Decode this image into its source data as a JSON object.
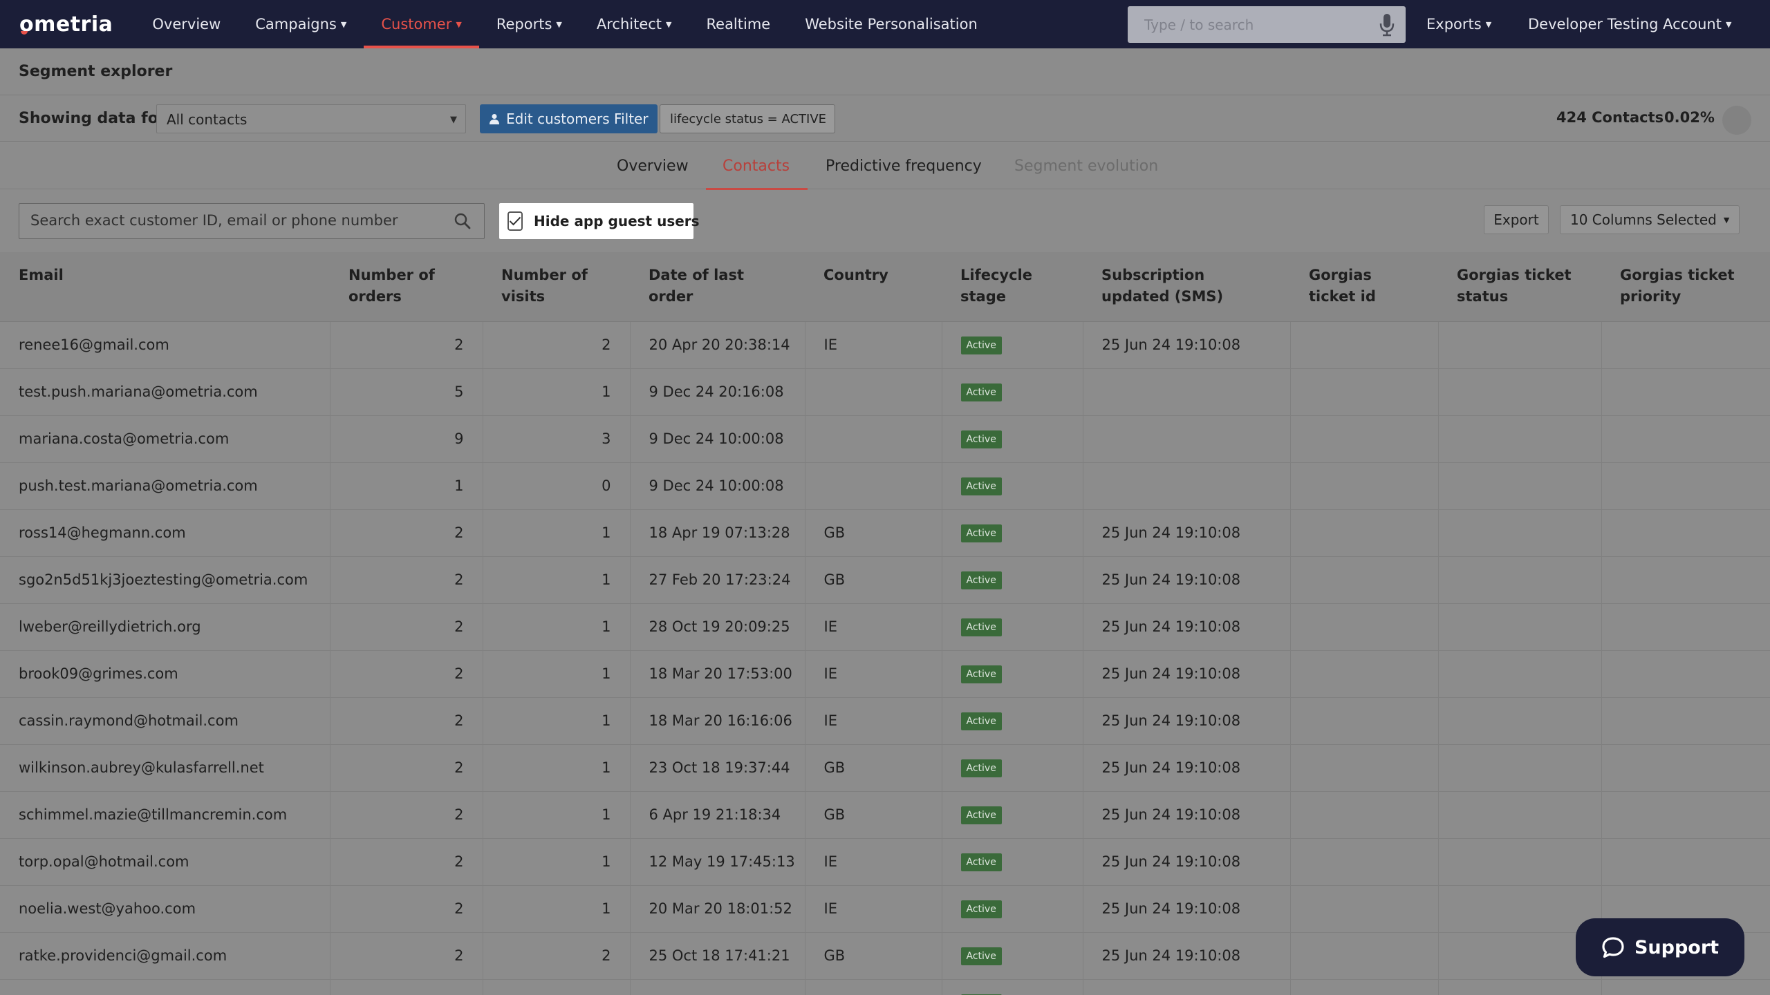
{
  "app": {
    "logo": "ometria"
  },
  "topnav": {
    "items": [
      {
        "label": "Overview",
        "dropdown": false,
        "active": false
      },
      {
        "label": "Campaigns",
        "dropdown": true,
        "active": false
      },
      {
        "label": "Customer",
        "dropdown": true,
        "active": true
      },
      {
        "label": "Reports",
        "dropdown": true,
        "active": false
      },
      {
        "label": "Architect",
        "dropdown": true,
        "active": false
      },
      {
        "label": "Realtime",
        "dropdown": false,
        "active": false
      },
      {
        "label": "Website Personalisation",
        "dropdown": false,
        "active": false
      }
    ],
    "search_placeholder": "Type / to search",
    "exports": "Exports",
    "account": "Developer Testing Account"
  },
  "page": {
    "title": "Segment explorer",
    "showing_label": "Showing data for:",
    "segment_selected": "All contacts",
    "edit_filter": "Edit customers Filter",
    "filter_chip": "lifecycle status = ACTIVE",
    "contacts_count": "424 Contacts",
    "contacts_percent": "0.02%"
  },
  "tabs": [
    {
      "label": "Overview",
      "state": "normal"
    },
    {
      "label": "Contacts",
      "state": "active"
    },
    {
      "label": "Predictive frequency",
      "state": "normal"
    },
    {
      "label": "Segment evolution",
      "state": "disabled"
    }
  ],
  "toolbar": {
    "search_placeholder": "Search exact customer ID, email or phone number",
    "hide_guest_label": "Hide app guest users",
    "hide_guest_checked": true,
    "export": "Export",
    "columns": "10 Columns Selected"
  },
  "table": {
    "columns": [
      "Email",
      "Number of orders",
      "Number of visits",
      "Date of last order",
      "Country",
      "Lifecycle stage",
      "Subscription updated (SMS)",
      "Gorgias ticket id",
      "Gorgias ticket status",
      "Gorgias ticket priority"
    ],
    "rows": [
      [
        "renee16@gmail.com",
        "2",
        "2",
        "20 Apr 20 20:38:14",
        "IE",
        "Active",
        "25 Jun 24 19:10:08",
        "",
        "",
        ""
      ],
      [
        "test.push.mariana@ometria.com",
        "5",
        "1",
        "9 Dec 24 20:16:08",
        "",
        "Active",
        "",
        "",
        "",
        ""
      ],
      [
        "mariana.costa@ometria.com",
        "9",
        "3",
        "9 Dec 24 10:00:08",
        "",
        "Active",
        "",
        "",
        "",
        ""
      ],
      [
        "push.test.mariana@ometria.com",
        "1",
        "0",
        "9 Dec 24 10:00:08",
        "",
        "Active",
        "",
        "",
        "",
        ""
      ],
      [
        "ross14@hegmann.com",
        "2",
        "1",
        "18 Apr 19 07:13:28",
        "GB",
        "Active",
        "25 Jun 24 19:10:08",
        "",
        "",
        ""
      ],
      [
        "sgo2n5d51kj3joeztesting@ometria.com",
        "2",
        "1",
        "27 Feb 20 17:23:24",
        "GB",
        "Active",
        "25 Jun 24 19:10:08",
        "",
        "",
        ""
      ],
      [
        "lweber@reillydietrich.org",
        "2",
        "1",
        "28 Oct 19 20:09:25",
        "IE",
        "Active",
        "25 Jun 24 19:10:08",
        "",
        "",
        ""
      ],
      [
        "brook09@grimes.com",
        "2",
        "1",
        "18 Mar 20 17:53:00",
        "IE",
        "Active",
        "25 Jun 24 19:10:08",
        "",
        "",
        ""
      ],
      [
        "cassin.raymond@hotmail.com",
        "2",
        "1",
        "18 Mar 20 16:16:06",
        "IE",
        "Active",
        "25 Jun 24 19:10:08",
        "",
        "",
        ""
      ],
      [
        "wilkinson.aubrey@kulasfarrell.net",
        "2",
        "1",
        "23 Oct 18 19:37:44",
        "GB",
        "Active",
        "25 Jun 24 19:10:08",
        "",
        "",
        ""
      ],
      [
        "schimmel.mazie@tillmancremin.com",
        "2",
        "1",
        "6 Apr 19 21:18:34",
        "GB",
        "Active",
        "25 Jun 24 19:10:08",
        "",
        "",
        ""
      ],
      [
        "torp.opal@hotmail.com",
        "2",
        "1",
        "12 May 19 17:45:13",
        "IE",
        "Active",
        "25 Jun 24 19:10:08",
        "",
        "",
        ""
      ],
      [
        "noelia.west@yahoo.com",
        "2",
        "1",
        "20 Mar 20 18:01:52",
        "IE",
        "Active",
        "25 Jun 24 19:10:08",
        "",
        "",
        ""
      ],
      [
        "ratke.providenci@gmail.com",
        "2",
        "2",
        "25 Oct 18 17:41:21",
        "GB",
        "Active",
        "25 Jun 24 19:10:08",
        "",
        "",
        ""
      ],
      [
        "",
        "",
        "",
        "",
        "",
        "Active",
        "",
        "",
        "",
        ""
      ]
    ]
  },
  "support": {
    "label": "Support"
  },
  "colors": {
    "nav_bg": "#1b1e38",
    "accent": "#e8524a",
    "primary_button": "#2a5a8c",
    "badge_active": "#3a6a3a",
    "overlay_bg": "#8c8c8c"
  }
}
